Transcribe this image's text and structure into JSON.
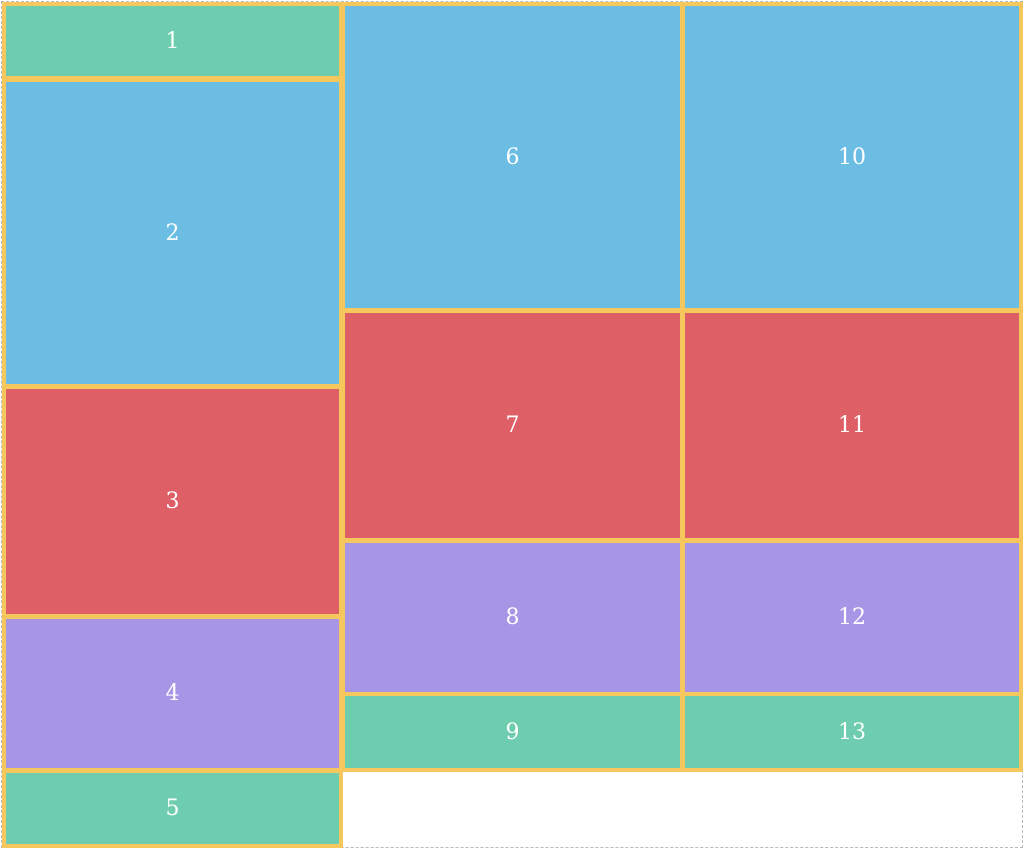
{
  "colors": {
    "border": "#f6c75d",
    "green": "#6dcdae",
    "blue": "#6bbde4",
    "red": "#de5f66",
    "purple": "#a795e6",
    "text": "#ffffff"
  },
  "blocks": {
    "b1": "1",
    "b2": "2",
    "b3": "3",
    "b4": "4",
    "b5": "5",
    "b6": "6",
    "b7": "7",
    "b8": "8",
    "b9": "9",
    "b10": "10",
    "b11": "11",
    "b12": "12",
    "b13": "13"
  }
}
